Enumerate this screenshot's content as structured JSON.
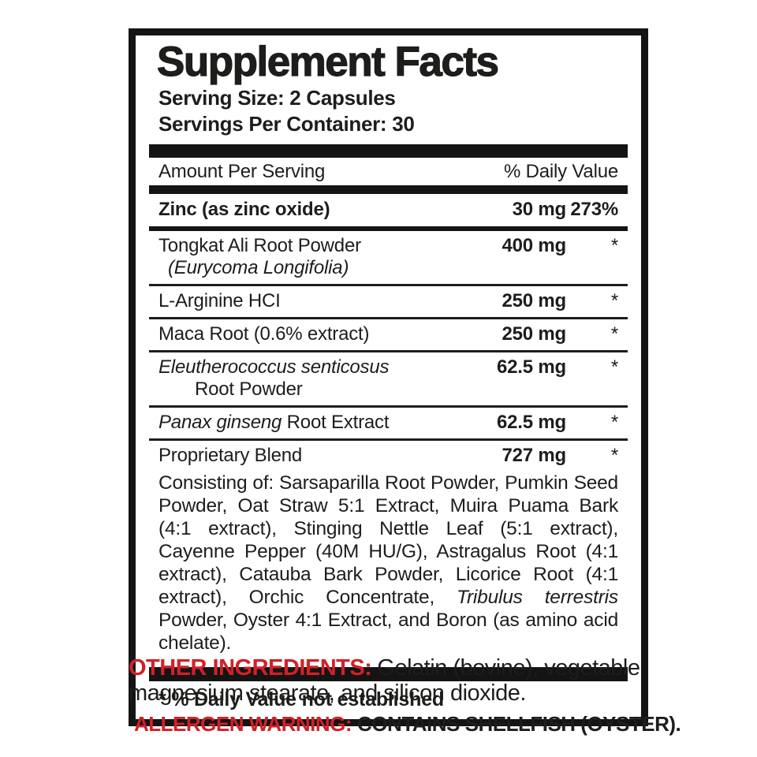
{
  "colors": {
    "ink": "#1d1d1b",
    "accent_red": "#d22027",
    "background": "#ffffff"
  },
  "panel": {
    "title": "Supplement Facts",
    "serving_size": "Serving Size: 2 Capsules",
    "servings_per_container": "Servings Per Container: 30",
    "columns": {
      "amount": "Amount Per Serving",
      "daily_value": "% Daily Value"
    },
    "rows": [
      {
        "name": "Zinc (as zinc oxide)",
        "amount": "30 mg",
        "dv": "273%"
      },
      {
        "name": "Tongkat Ali Root Powder",
        "name2": "(Eurycoma Longifolia)",
        "amount": "400 mg",
        "dv": "*"
      },
      {
        "name": "L-Arginine HCI",
        "amount": "250 mg",
        "dv": "*"
      },
      {
        "name": "Maca Root (0.6% extract)",
        "amount": "250 mg",
        "dv": "*"
      },
      {
        "name": "Eleutherococcus senticosus",
        "name2": "Root Powder",
        "amount": "62.5 mg",
        "dv": "*"
      },
      {
        "name_italic": "Panax ginseng",
        "name_rest": " Root Extract",
        "amount": "62.5 mg",
        "dv": "*"
      },
      {
        "name": "Proprietary Blend",
        "amount": "727 mg",
        "dv": "*"
      }
    ],
    "blend_description": {
      "before": "Consisting of: Sarsaparilla Root Powder, Pumkin Seed Powder, Oat Straw 5:1 Extract, Muira Puama Bark (4:1 extract), Stinging Nettle Leaf (5:1 extract), Cayenne Pepper (40M HU/G), Astragalus Root (4:1 extract), Catauba Bark Powder, Licorice Root (4:1 extract), Orchic Concentrate, ",
      "italic": "Tribulus terrestris",
      "after": " Powder, Oyster 4:1 Extract, and Boron (as amino acid chelate)."
    },
    "footnote": "* % Daily Value not established"
  },
  "other_ingredients": {
    "label": "OTHER INGREDIENTS:",
    "text": "Gelatin (bovine), vegetable magnesium stearate, and silicon dioxide."
  },
  "allergen_warning": {
    "label": "ALLERGEN WARNING:",
    "text": "CONTAINS SHELLFISH (OYSTER)."
  }
}
